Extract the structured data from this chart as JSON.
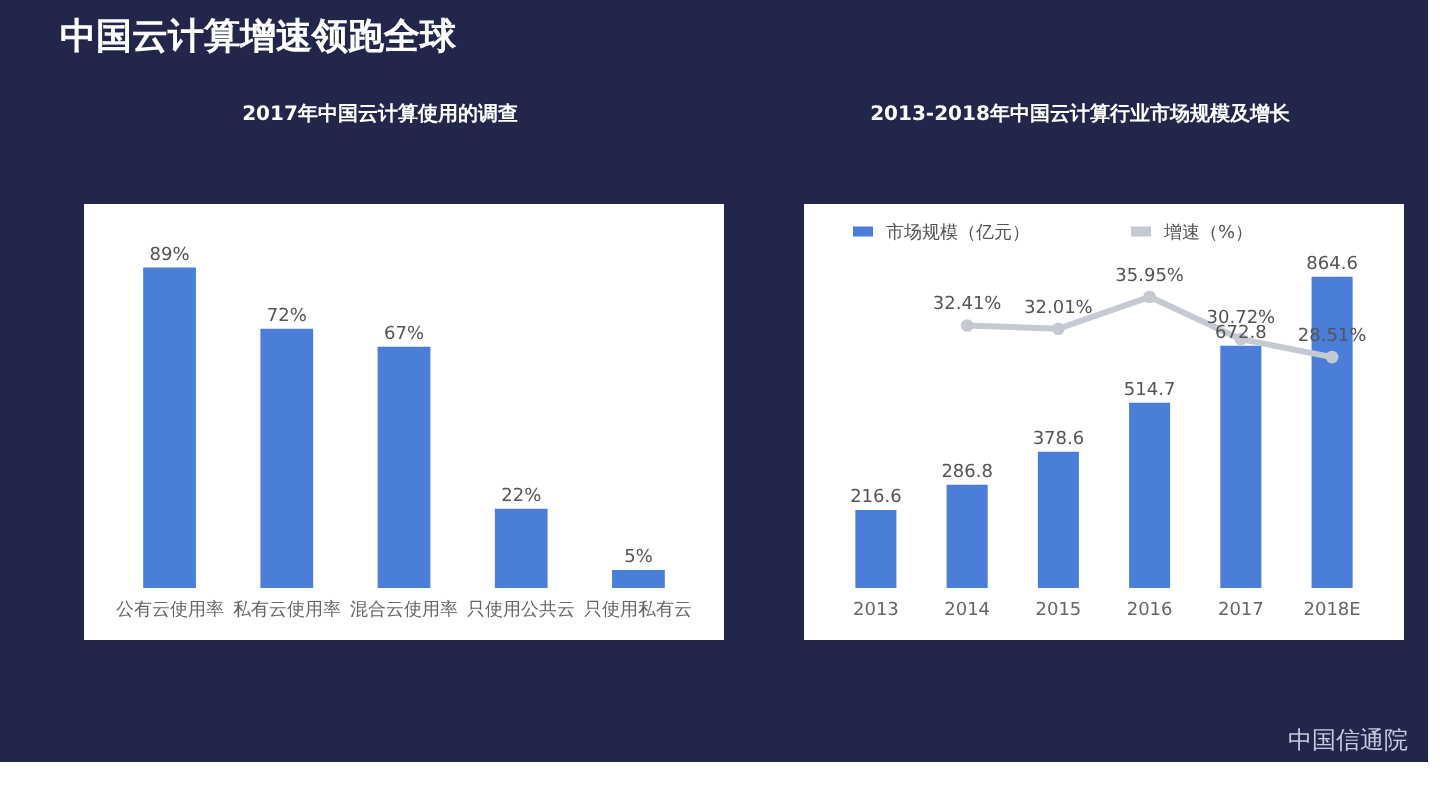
{
  "chart_data": [
    {
      "type": "bar",
      "title": "2017年中国云计算使用的调查",
      "categories": [
        "公有云使用率",
        "私有云使用率",
        "混合云使用率",
        "只使用公共云",
        "只使用私有云"
      ],
      "values": [
        89,
        72,
        67,
        22,
        5
      ],
      "color": "#4a7ed8",
      "value_labels": [
        "89%",
        "72%",
        "67%",
        "22%",
        "5%"
      ],
      "tick_labels": "x",
      "annotations": [
        "中国云计算增速领跑全球"
      ]
    },
    {
      "type": "bar",
      "title": "2013-2018年中国云计算行业市场规模及增长",
      "categories": [
        "2013",
        "2014",
        "2015",
        "2016",
        "2017",
        "2018E"
      ],
      "series": [
        {
          "name": "市场规模（亿元）",
          "type": "bar",
          "color": "#4a7ed8",
          "values": [
            216.6,
            286.8,
            378.6,
            514.7,
            672.8,
            864.6
          ],
          "value_labels": [
            "216.6",
            "286.8",
            "378.6",
            "514.7",
            "672.8",
            "864.6"
          ]
        },
        {
          "name": "增速（%）",
          "type": "line",
          "axis": "y2",
          "color": "#c5c9d2",
          "values": [
            null,
            32.41,
            32.01,
            35.95,
            30.72,
            28.51
          ],
          "value_labels": [
            null,
            "32.41%",
            "32.01%",
            "35.95%",
            "30.72%",
            "28.51%"
          ]
        }
      ],
      "tick_labels": "x",
      "legend": "top",
      "marker": "circle",
      "annotations": [
        "中国信通院"
      ]
    }
  ]
}
